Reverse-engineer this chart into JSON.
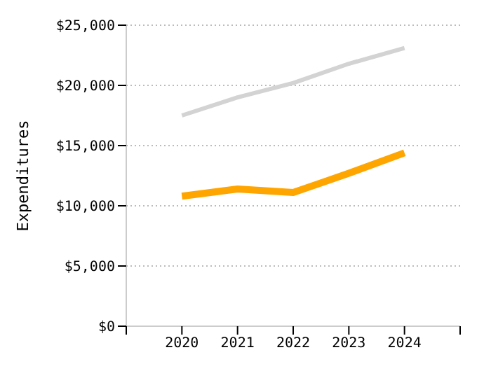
{
  "chart_data": {
    "type": "line",
    "ylabel": "Expenditures",
    "x": [
      2020,
      2021,
      2022,
      2023,
      2024
    ],
    "series": [
      {
        "color": "#d3d3d3",
        "values": [
          17500,
          19000,
          20200,
          21800,
          23100
        ]
      },
      {
        "color": "#ffa500",
        "values": [
          10800,
          11400,
          11100,
          12700,
          14400
        ]
      }
    ],
    "xlim": [
      2019,
      2025
    ],
    "xticks": [
      {
        "value": 2019,
        "label": null
      },
      2020,
      2021,
      2022,
      2023,
      2024,
      {
        "value": 2025,
        "label": null
      }
    ],
    "ylim": [
      0,
      25000
    ],
    "yticks": [
      {
        "value": 0,
        "label": "$0"
      },
      {
        "value": 5000,
        "label": "$5,000"
      },
      {
        "value": 10000,
        "label": "$10,000"
      },
      {
        "value": 15000,
        "label": "$15,000"
      },
      {
        "value": 20000,
        "label": "$20,000"
      },
      {
        "value": 25000,
        "label": "$25,000"
      }
    ],
    "grid": "y",
    "marker": "none",
    "line_style": "solid"
  }
}
